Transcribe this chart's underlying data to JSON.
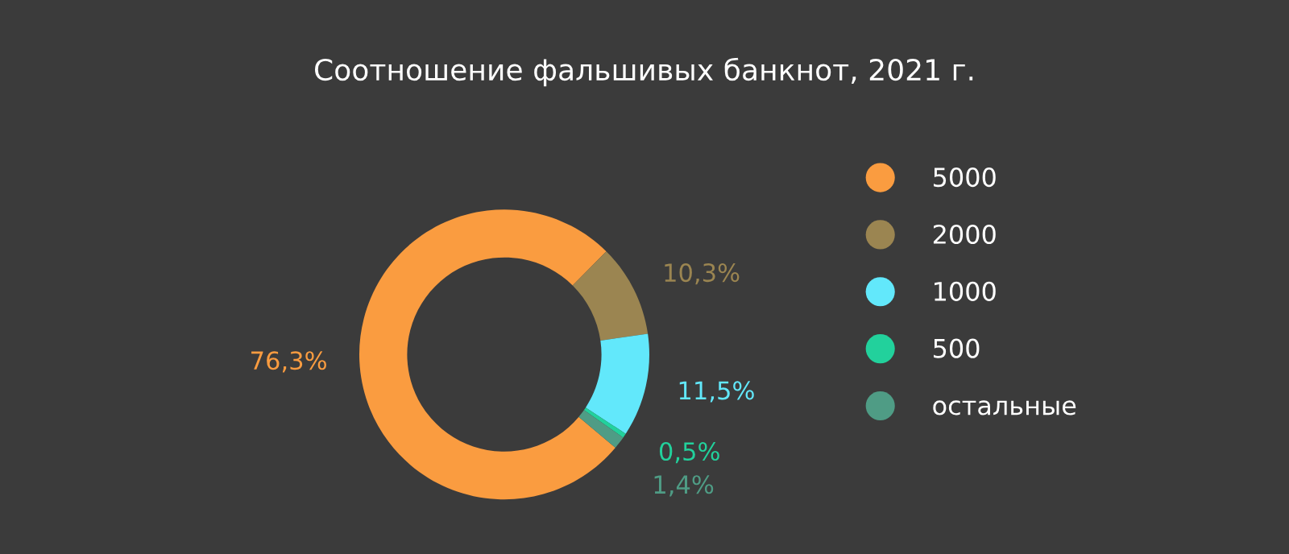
{
  "chart_data": {
    "type": "donut",
    "title": "Соотношение фальшивых банкнот, 2021 г.",
    "categories": [
      "5000",
      "2000",
      "1000",
      "500",
      "остальные"
    ],
    "values": [
      76.3,
      10.3,
      11.5,
      0.5,
      1.4
    ],
    "colors": [
      "#fa9c40",
      "#9b8551",
      "#62e8fb",
      "#22d19c",
      "#4f9c85"
    ],
    "value_labels": [
      "76,3%",
      "10,3%",
      "11,5%",
      "0,5%",
      "1,4%"
    ],
    "legend": "right"
  }
}
